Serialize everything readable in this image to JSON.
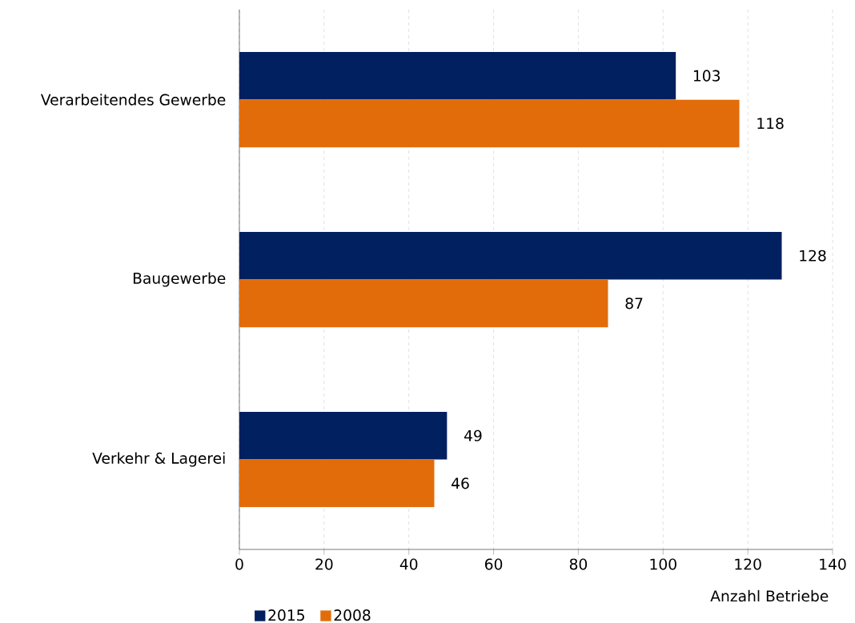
{
  "chart_data": {
    "type": "bar",
    "orientation": "horizontal",
    "xlabel": "Anzahl Betriebe",
    "categories": [
      "Verarbeitendes Gewerbe",
      "Baugewerbe",
      "Verkehr & Lagerei"
    ],
    "series": [
      {
        "name": "2015",
        "color": "#002060",
        "values": [
          103,
          128,
          49
        ]
      },
      {
        "name": "2008",
        "color": "#e36c0a",
        "values": [
          118,
          87,
          46
        ]
      }
    ],
    "xlim": [
      0,
      140
    ],
    "xticks": [
      0,
      20,
      40,
      60,
      80,
      100,
      120,
      140
    ],
    "grid": "x",
    "legend": "bottom",
    "data_labels": true
  }
}
